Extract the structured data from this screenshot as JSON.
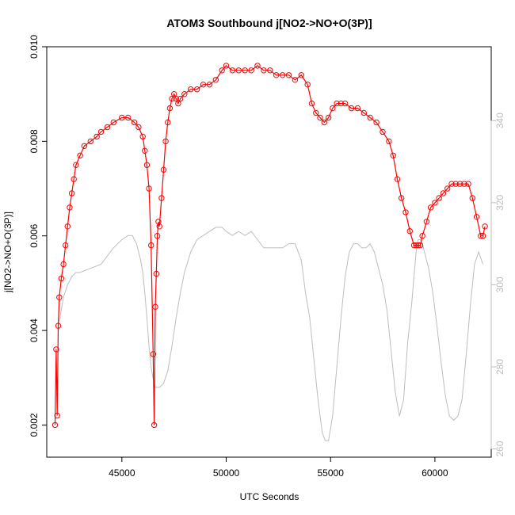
{
  "chart_data": {
    "type": "scatter",
    "title": "ATOM3 Southbound j[NO2->NO+O(3P)]",
    "xlabel": "UTC Seconds",
    "ylabel": "j[NO2->NO+O(3P)]",
    "xlim": [
      41400,
      62700
    ],
    "ylim": [
      0.00132,
      0.01
    ],
    "y2lim": [
      258,
      358
    ],
    "x_ticks": [
      45000,
      50000,
      55000,
      60000
    ],
    "x_tick_labels": [
      "45000",
      "50000",
      "55000",
      "60000"
    ],
    "y_ticks": [
      0.002,
      0.004,
      0.006,
      0.008,
      0.01
    ],
    "y_tick_labels": [
      "0.002",
      "0.004",
      "0.006",
      "0.008",
      "0.010"
    ],
    "y2_ticks": [
      260,
      280,
      300,
      320,
      340
    ],
    "y2_tick_labels": [
      "260",
      "280",
      "300",
      "320",
      "340"
    ],
    "grid": false,
    "colors": {
      "primary": "#ff0000",
      "secondary": "#bdbdbd",
      "axis": "#000000"
    },
    "series": [
      {
        "axis": "left",
        "style": "open-circles-with-line",
        "color": "#ff0000",
        "x": [
          41800,
          41850,
          41900,
          41950,
          42000,
          42100,
          42200,
          42300,
          42400,
          42500,
          42600,
          42700,
          42800,
          43000,
          43200,
          43500,
          43800,
          44000,
          44300,
          44600,
          45000,
          45300,
          45600,
          45800,
          46000,
          46100,
          46200,
          46300,
          46400,
          46500,
          46550,
          46600,
          46650,
          46700,
          46750,
          46800,
          46900,
          47000,
          47100,
          47200,
          47300,
          47400,
          47500,
          47600,
          47700,
          47800,
          48000,
          48300,
          48600,
          48900,
          49200,
          49500,
          49800,
          50000,
          50300,
          50600,
          50900,
          51200,
          51500,
          51800,
          52100,
          52400,
          52700,
          53000,
          53300,
          53600,
          53900,
          54100,
          54300,
          54500,
          54700,
          54900,
          55100,
          55300,
          55500,
          55700,
          56000,
          56300,
          56600,
          56900,
          57200,
          57500,
          57800,
          58000,
          58200,
          58400,
          58600,
          58800,
          59000,
          59100,
          59200,
          59300,
          59400,
          59600,
          59800,
          60000,
          60200,
          60400,
          60600,
          60800,
          61000,
          61200,
          61400,
          61600,
          61800,
          62000,
          62200,
          62300,
          62400
        ],
        "y": [
          0.002,
          0.0036,
          0.0022,
          0.0041,
          0.0047,
          0.0051,
          0.0054,
          0.0058,
          0.0062,
          0.0066,
          0.0069,
          0.0072,
          0.0075,
          0.0077,
          0.0079,
          0.008,
          0.0081,
          0.0082,
          0.0083,
          0.0084,
          0.0085,
          0.0085,
          0.0084,
          0.0083,
          0.0081,
          0.0078,
          0.0075,
          0.007,
          0.0058,
          0.0035,
          0.002,
          0.0045,
          0.0052,
          0.006,
          0.0063,
          0.0062,
          0.0068,
          0.0074,
          0.008,
          0.0084,
          0.0087,
          0.0089,
          0.009,
          0.0089,
          0.0088,
          0.0089,
          0.009,
          0.0091,
          0.0091,
          0.0092,
          0.0092,
          0.0093,
          0.0095,
          0.0096,
          0.0095,
          0.0095,
          0.0095,
          0.0095,
          0.0096,
          0.0095,
          0.0095,
          0.0094,
          0.0094,
          0.0094,
          0.0093,
          0.0094,
          0.0092,
          0.0088,
          0.0086,
          0.0085,
          0.0084,
          0.0085,
          0.0087,
          0.0088,
          0.0088,
          0.0088,
          0.0087,
          0.0087,
          0.0086,
          0.0085,
          0.0084,
          0.0082,
          0.008,
          0.0077,
          0.0072,
          0.0068,
          0.0065,
          0.0061,
          0.0058,
          0.0058,
          0.0058,
          0.0058,
          0.006,
          0.0063,
          0.0066,
          0.0067,
          0.0068,
          0.0069,
          0.007,
          0.0071,
          0.0071,
          0.0071,
          0.0071,
          0.0071,
          0.0068,
          0.0064,
          0.006,
          0.006,
          0.0062
        ]
      },
      {
        "axis": "right",
        "style": "line",
        "color": "#bdbdbd",
        "x": [
          42000,
          42200,
          42400,
          42600,
          42800,
          43000,
          43500,
          44000,
          44300,
          44600,
          45000,
          45300,
          45500,
          45700,
          45900,
          46000,
          46100,
          46200,
          46300,
          46400,
          46500,
          46600,
          46800,
          47000,
          47200,
          47400,
          47600,
          47800,
          48000,
          48300,
          48600,
          48900,
          49200,
          49500,
          49800,
          50000,
          50300,
          50600,
          50900,
          51200,
          51500,
          51800,
          52100,
          52400,
          52700,
          53000,
          53300,
          53600,
          53800,
          54000,
          54200,
          54400,
          54600,
          54750,
          54900,
          55100,
          55300,
          55500,
          55700,
          55900,
          56100,
          56300,
          56500,
          56700,
          56900,
          57100,
          57300,
          57500,
          57700,
          57900,
          58100,
          58300,
          58500,
          58700,
          58900,
          59000,
          59100,
          59200,
          59300,
          59400,
          59500,
          59700,
          59900,
          60100,
          60300,
          60500,
          60700,
          60900,
          61100,
          61300,
          61500,
          61700,
          61900,
          62100,
          62300
        ],
        "y": [
          291,
          297,
          300,
          302,
          303,
          303,
          304,
          305,
          307,
          309,
          311,
          312,
          312,
          310,
          306,
          303,
          298,
          292,
          285,
          280,
          277,
          275,
          275,
          276,
          279,
          285,
          292,
          298,
          303,
          308,
          311,
          312,
          313,
          314,
          314,
          313,
          312,
          313,
          312,
          313,
          311,
          309,
          309,
          309,
          309,
          310,
          310,
          306,
          298,
          292,
          282,
          272,
          264,
          262,
          262,
          268,
          280,
          292,
          302,
          308,
          310,
          310,
          309,
          309,
          310,
          308,
          304,
          300,
          294,
          284,
          274,
          268,
          272,
          286,
          296,
          302,
          308,
          311,
          311,
          310,
          308,
          304,
          298,
          290,
          281,
          273,
          268,
          267,
          268,
          272,
          283,
          295,
          305,
          308,
          305
        ]
      }
    ]
  }
}
